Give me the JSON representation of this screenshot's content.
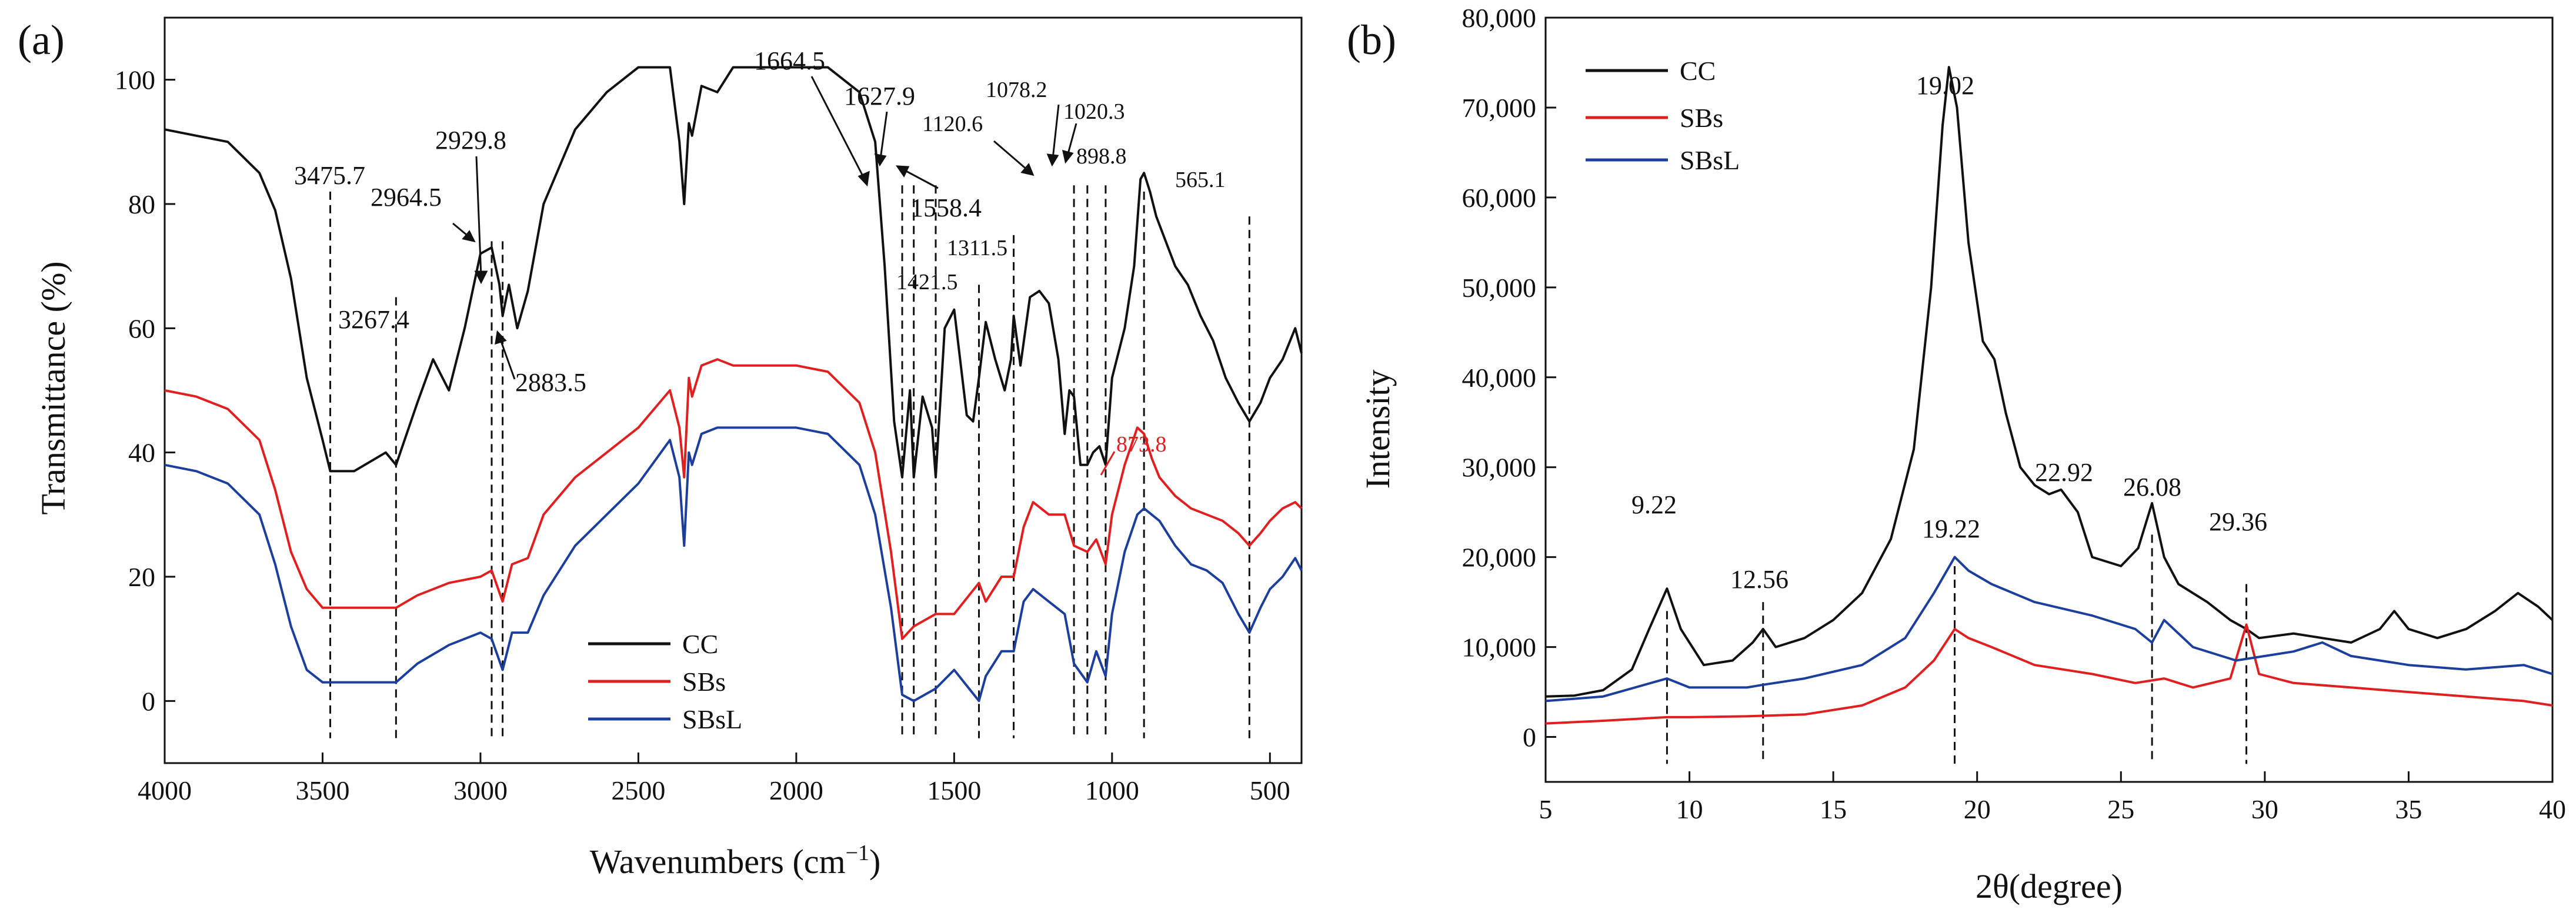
{
  "chart_data": [
    {
      "type": "line",
      "panel_label": "(a)",
      "xlabel": "Wavenumbers (cm",
      "xlabel_sup": "−1",
      "xlabel_close": ")",
      "ylabel": "Transmittance (%)",
      "xlim": [
        4000,
        400
      ],
      "ylim": [
        -10,
        110
      ],
      "xticks": [
        4000,
        3500,
        3000,
        2500,
        2000,
        1500,
        1000,
        500
      ],
      "yticks": [
        0,
        20,
        40,
        60,
        80,
        100
      ],
      "legend": [
        "CC",
        "SBs",
        "SBsL"
      ],
      "legend_position": "bottom-center",
      "series": [
        {
          "name": "CC",
          "color": "#111111",
          "x": [
            4000,
            3900,
            3800,
            3700,
            3650,
            3600,
            3550,
            3500,
            3475.7,
            3400,
            3300,
            3267.4,
            3200,
            3150,
            3100,
            3050,
            3000,
            2964.5,
            2940,
            2929.8,
            2910,
            2883.5,
            2850,
            2800,
            2700,
            2600,
            2500,
            2400,
            2370,
            2355,
            2340,
            2330,
            2300,
            2250,
            2200,
            2100,
            2000,
            1900,
            1800,
            1750,
            1720,
            1690,
            1664.5,
            1640,
            1627.9,
            1600,
            1570,
            1558.4,
            1530,
            1500,
            1460,
            1440,
            1421.5,
            1400,
            1370,
            1340,
            1320,
            1311.5,
            1290,
            1260,
            1230,
            1200,
            1170,
            1150,
            1135,
            1120.6,
            1100,
            1078.2,
            1060,
            1040,
            1020.3,
            1000,
            960,
            930,
            910,
            898.8,
            880,
            860,
            830,
            800,
            760,
            720,
            680,
            640,
            600,
            565.1,
            530,
            500,
            460,
            420,
            400
          ],
          "y": [
            92,
            91,
            90,
            85,
            79,
            68,
            52,
            42,
            37,
            37,
            40,
            38,
            48,
            55,
            50,
            60,
            72,
            73,
            67,
            62,
            67,
            60,
            66,
            80,
            92,
            98,
            102,
            102,
            90,
            80,
            93,
            91,
            99,
            98,
            102,
            102,
            102,
            102,
            98,
            90,
            70,
            45,
            36,
            50,
            36,
            49,
            44,
            36,
            60,
            63,
            46,
            45,
            52,
            61,
            55,
            50,
            55,
            62,
            54,
            65,
            66,
            64,
            55,
            43,
            50,
            49,
            38,
            38,
            40,
            41,
            38,
            52,
            60,
            70,
            84,
            85,
            82,
            78,
            74,
            70,
            67,
            62,
            58,
            52,
            48,
            45,
            48,
            52,
            55,
            60,
            56
          ]
        },
        {
          "name": "SBs",
          "color": "#e02020",
          "x": [
            4000,
            3900,
            3800,
            3700,
            3650,
            3600,
            3550,
            3500,
            3475.7,
            3400,
            3300,
            3267.4,
            3200,
            3100,
            3000,
            2964.5,
            2929.8,
            2900,
            2850,
            2800,
            2700,
            2600,
            2500,
            2400,
            2370,
            2355,
            2340,
            2330,
            2300,
            2250,
            2200,
            2100,
            2000,
            1900,
            1800,
            1750,
            1700,
            1664.5,
            1627.9,
            1558.4,
            1500,
            1421.5,
            1400,
            1350,
            1311.5,
            1280,
            1250,
            1200,
            1150,
            1120.6,
            1078.2,
            1050,
            1020.3,
            1000,
            960,
            920,
            898.8,
            873.8,
            850,
            800,
            750,
            700,
            650,
            600,
            565.1,
            530,
            500,
            460,
            420,
            400
          ],
          "y": [
            50,
            49,
            47,
            42,
            34,
            24,
            18,
            15,
            15,
            15,
            15,
            15,
            17,
            19,
            20,
            21,
            16,
            22,
            23,
            30,
            36,
            40,
            44,
            50,
            44,
            36,
            52,
            49,
            54,
            55,
            54,
            54,
            54,
            53,
            48,
            40,
            24,
            10,
            12,
            14,
            14,
            19,
            16,
            20,
            20,
            28,
            32,
            30,
            30,
            25,
            24,
            26,
            22,
            30,
            38,
            44,
            43,
            39,
            36,
            33,
            31,
            30,
            29,
            27,
            25,
            27,
            29,
            31,
            32,
            31
          ]
        },
        {
          "name": "SBsL",
          "color": "#1c3e9c",
          "x": [
            4000,
            3900,
            3800,
            3700,
            3650,
            3600,
            3550,
            3500,
            3475.7,
            3400,
            3300,
            3267.4,
            3200,
            3100,
            3000,
            2964.5,
            2929.8,
            2900,
            2850,
            2800,
            2700,
            2600,
            2500,
            2400,
            2370,
            2355,
            2340,
            2330,
            2300,
            2250,
            2200,
            2100,
            2000,
            1900,
            1800,
            1750,
            1700,
            1664.5,
            1627.9,
            1558.4,
            1500,
            1421.5,
            1400,
            1350,
            1311.5,
            1280,
            1250,
            1200,
            1150,
            1120.6,
            1078.2,
            1050,
            1020.3,
            1000,
            960,
            920,
            898.8,
            850,
            800,
            750,
            700,
            650,
            600,
            565.1,
            530,
            500,
            460,
            420,
            400
          ],
          "y": [
            38,
            37,
            35,
            30,
            22,
            12,
            5,
            3,
            3,
            3,
            3,
            3,
            6,
            9,
            11,
            10,
            5,
            11,
            11,
            17,
            25,
            30,
            35,
            42,
            36,
            25,
            40,
            38,
            43,
            44,
            44,
            44,
            44,
            43,
            38,
            30,
            15,
            1,
            0,
            2,
            5,
            0,
            4,
            8,
            8,
            16,
            18,
            16,
            14,
            6,
            3,
            8,
            4,
            14,
            24,
            30,
            31,
            29,
            25,
            22,
            21,
            19,
            14,
            11,
            15,
            18,
            20,
            23,
            21
          ]
        }
      ],
      "peak_lines": [
        3475.7,
        3267.4,
        2964.5,
        2929.8,
        1664.5,
        1627.9,
        1558.4,
        1421.5,
        1311.5,
        1120.6,
        1078.2,
        1020.3,
        898.8,
        565.1
      ],
      "annotations": [
        {
          "text": "3475.7",
          "x": 3475.7
        },
        {
          "text": "3267.4",
          "x": 3267.4
        },
        {
          "text": "2964.5",
          "x": 2964.5
        },
        {
          "text": "2929.8",
          "x": 2929.8
        },
        {
          "text": "2883.5",
          "x": 2883.5
        },
        {
          "text": "1664.5",
          "x": 1664.5
        },
        {
          "text": "1627.9",
          "x": 1627.9
        },
        {
          "text": "1558.4",
          "x": 1558.4
        },
        {
          "text": "1421.5",
          "x": 1421.5
        },
        {
          "text": "1311.5",
          "x": 1311.5
        },
        {
          "text": "1120.6",
          "x": 1120.6
        },
        {
          "text": "1078.2",
          "x": 1078.2
        },
        {
          "text": "1020.3",
          "x": 1020.3
        },
        {
          "text": "898.8",
          "x": 898.8
        },
        {
          "text": "565.1",
          "x": 565.1
        },
        {
          "text": "873.8",
          "x": 873.8,
          "color": "#e02020"
        }
      ]
    },
    {
      "type": "line",
      "panel_label": "(b)",
      "xlabel": "2θ(degree)",
      "ylabel": "Intensity",
      "xlim": [
        5,
        40
      ],
      "ylim": [
        -5000,
        80000
      ],
      "xticks": [
        5,
        10,
        15,
        20,
        25,
        30,
        35,
        40
      ],
      "yticks": [
        0,
        10000,
        20000,
        30000,
        40000,
        50000,
        60000,
        70000,
        80000
      ],
      "ytick_labels": [
        "0",
        "10,000",
        "20,000",
        "30,000",
        "40,000",
        "50,000",
        "60,000",
        "70,000",
        "80,000"
      ],
      "legend": [
        "CC",
        "SBs",
        "SBsL"
      ],
      "legend_position": "top-left",
      "series": [
        {
          "name": "CC",
          "color": "#111111",
          "x": [
            5,
            6,
            7,
            8,
            8.6,
            9.22,
            9.7,
            10.5,
            11.5,
            12.2,
            12.56,
            13,
            14,
            15,
            16,
            17,
            17.8,
            18.4,
            18.8,
            19.02,
            19.3,
            19.7,
            20.2,
            20.6,
            21,
            21.5,
            22,
            22.5,
            22.92,
            23.5,
            24,
            25,
            25.6,
            26.08,
            26.5,
            27,
            28,
            28.8,
            29.36,
            29.8,
            31,
            32,
            33,
            34,
            34.5,
            35,
            36,
            37,
            38,
            38.8,
            39.5,
            40
          ],
          "y": [
            4500,
            4600,
            5200,
            7500,
            12000,
            16500,
            12000,
            8000,
            8500,
            10500,
            12000,
            10000,
            11000,
            13000,
            16000,
            22000,
            32000,
            50000,
            68000,
            74500,
            70000,
            55000,
            44000,
            42000,
            36000,
            30000,
            28000,
            27000,
            27500,
            25000,
            20000,
            19000,
            21000,
            26000,
            20000,
            17000,
            15000,
            13000,
            12000,
            11000,
            11500,
            11000,
            10500,
            12000,
            14000,
            12000,
            11000,
            12000,
            14000,
            16000,
            14500,
            13000
          ]
        },
        {
          "name": "SBs",
          "color": "#e02020",
          "x": [
            5,
            7,
            9.22,
            10,
            12,
            14,
            16,
            17.5,
            18.5,
            19.22,
            19.7,
            20.5,
            22,
            24,
            25.5,
            26.5,
            27.5,
            28.8,
            29.36,
            29.8,
            31,
            33,
            35,
            37,
            39,
            40
          ],
          "y": [
            1500,
            1800,
            2200,
            2200,
            2300,
            2500,
            3500,
            5500,
            8500,
            12000,
            11000,
            10000,
            8000,
            7000,
            6000,
            6500,
            5500,
            6500,
            12500,
            7000,
            6000,
            5500,
            5000,
            4500,
            4000,
            3500
          ]
        },
        {
          "name": "SBsL",
          "color": "#1c3e9c",
          "x": [
            5,
            7,
            9.22,
            10,
            12,
            12.56,
            14,
            16,
            17.5,
            18.5,
            19.22,
            19.7,
            20.5,
            22,
            24,
            25.5,
            26.08,
            26.5,
            27.5,
            29,
            30,
            31,
            32,
            33,
            35,
            37,
            39,
            40
          ],
          "y": [
            4000,
            4500,
            6500,
            5500,
            5500,
            5800,
            6500,
            8000,
            11000,
            16000,
            20000,
            18500,
            17000,
            15000,
            13500,
            12000,
            10500,
            13000,
            10000,
            8500,
            9000,
            9500,
            10500,
            9000,
            8000,
            7500,
            8000,
            7000
          ]
        }
      ],
      "peak_lines": [
        9.22,
        12.56,
        19.22,
        26.08,
        29.36
      ],
      "annotations": [
        {
          "text": "9.22",
          "x": 9.22
        },
        {
          "text": "12.56",
          "x": 12.56
        },
        {
          "text": "19.02",
          "x": 19.02
        },
        {
          "text": "19.22",
          "x": 19.22
        },
        {
          "text": "22.92",
          "x": 22.92
        },
        {
          "text": "26.08",
          "x": 26.08
        },
        {
          "text": "29.36",
          "x": 29.36
        }
      ]
    }
  ]
}
